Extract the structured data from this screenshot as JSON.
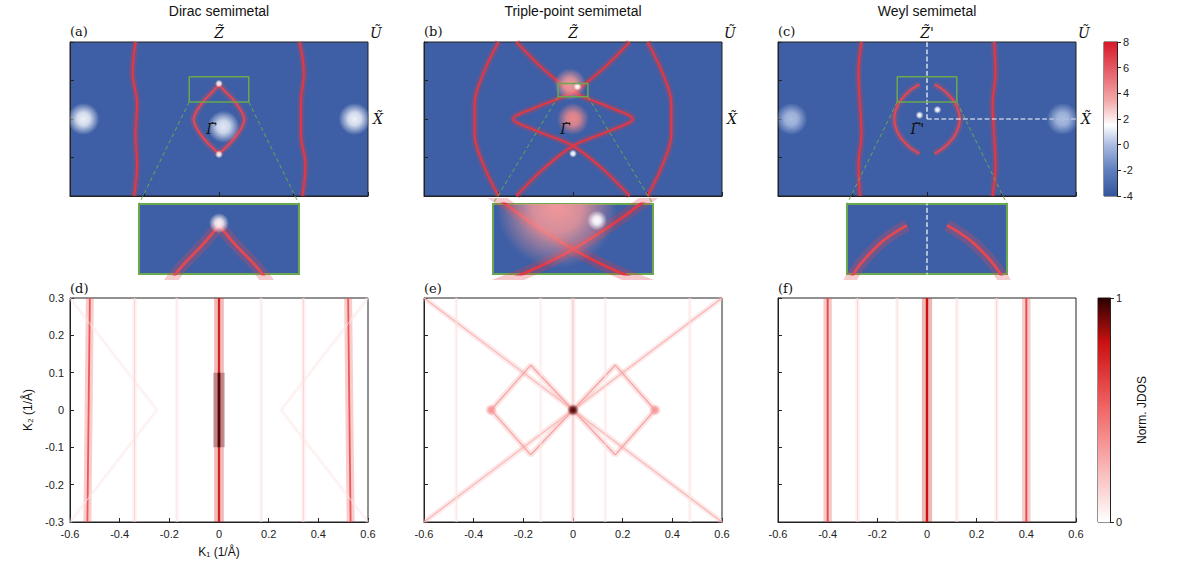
{
  "chart_data": [
    {
      "type": "colorbar",
      "ylim": [
        -4,
        8
      ],
      "yticks": [
        8,
        6,
        4,
        2,
        0,
        -2,
        -4
      ]
    },
    {
      "type": "spectral_map",
      "panel": "(a)",
      "title": "Dirac semimetal",
      "xlim": [
        -1,
        1
      ],
      "ylim": [
        -1,
        1
      ],
      "xticks": [
        -1,
        -0.5,
        0,
        0.5,
        1
      ],
      "yticks": [
        -1,
        -0.5,
        0,
        0.5,
        1
      ],
      "tick_labels": false,
      "background": -3.5,
      "labels": [
        {
          "text": "Z̃",
          "x": 0,
          "y": 1
        },
        {
          "text": "Ũ",
          "x": 1,
          "y": 1
        },
        {
          "text": "X̃",
          "x": 1,
          "y": 0
        },
        {
          "text": "Γ̃",
          "x": 0,
          "y": 0
        }
      ],
      "curves": [
        {
          "value": 7,
          "points": [
            [
              -0.57,
              -1
            ],
            [
              -0.55,
              -0.6
            ],
            [
              -0.56,
              -0.2
            ],
            [
              -0.55,
              0.2
            ],
            [
              -0.58,
              0.6
            ],
            [
              -0.56,
              1
            ]
          ]
        },
        {
          "value": 7,
          "points": [
            [
              0.56,
              -1
            ],
            [
              0.58,
              -0.6
            ],
            [
              0.55,
              -0.2
            ],
            [
              0.55,
              0.2
            ],
            [
              0.57,
              0.6
            ],
            [
              0.54,
              1
            ]
          ]
        },
        {
          "value": 6.5,
          "points": [
            [
              0,
              0.45
            ],
            [
              0.04,
              0.36
            ],
            [
              0.1,
              0.24
            ],
            [
              0.15,
              0.1
            ],
            [
              0.17,
              0
            ],
            [
              0.15,
              -0.12
            ],
            [
              0.1,
              -0.26
            ],
            [
              0.04,
              -0.38
            ],
            [
              0,
              -0.45
            ]
          ]
        },
        {
          "value": 6.5,
          "points": [
            [
              0,
              0.45
            ],
            [
              -0.04,
              0.36
            ],
            [
              -0.1,
              0.24
            ],
            [
              -0.15,
              0.1
            ],
            [
              -0.17,
              0
            ],
            [
              -0.15,
              -0.12
            ],
            [
              -0.1,
              -0.26
            ],
            [
              -0.04,
              -0.38
            ],
            [
              0,
              -0.45
            ]
          ]
        }
      ],
      "spots": [
        {
          "x": 0,
          "y": 0.46,
          "value": 1.8
        },
        {
          "x": 0,
          "y": -0.46,
          "value": 1.8
        }
      ],
      "blobs": [
        {
          "x": 0.03,
          "y": -0.1,
          "value": 1
        },
        {
          "x": -0.91,
          "y": 0,
          "value": 1.2
        },
        {
          "x": 0.91,
          "y": 0,
          "value": 1.2
        }
      ],
      "inset": {
        "xlim": [
          -0.2,
          0.2
        ],
        "ylim": [
          0.22,
          0.55
        ]
      }
    },
    {
      "type": "spectral_map",
      "panel": "(b)",
      "title": "Triple-point semimetal",
      "xlim": [
        -1,
        1
      ],
      "ylim": [
        -1,
        1
      ],
      "xticks": [
        -1,
        -0.5,
        0,
        0.5,
        1
      ],
      "yticks": [
        -1,
        -0.5,
        0,
        0.5,
        1
      ],
      "tick_labels": false,
      "background": -3.5,
      "labels": [
        {
          "text": "Z̃",
          "x": 0,
          "y": 1
        },
        {
          "text": "Ũ",
          "x": 1,
          "y": 1
        },
        {
          "text": "X̃",
          "x": 1,
          "y": 0
        },
        {
          "text": "Γ̃",
          "x": 0,
          "y": 0
        }
      ],
      "curves": [
        {
          "value": 7,
          "points": [
            [
              -0.5,
              1
            ],
            [
              -0.6,
              0.6
            ],
            [
              -0.66,
              0.2
            ],
            [
              -0.66,
              -0.2
            ],
            [
              -0.6,
              -0.6
            ],
            [
              -0.5,
              -1
            ]
          ]
        },
        {
          "value": 7,
          "points": [
            [
              0.5,
              1
            ],
            [
              0.6,
              0.6
            ],
            [
              0.66,
              0.2
            ],
            [
              0.66,
              -0.2
            ],
            [
              0.6,
              -0.6
            ],
            [
              0.5,
              -1
            ]
          ]
        },
        {
          "value": 7,
          "points": [
            [
              -0.38,
              1
            ],
            [
              -0.2,
              0.65
            ],
            [
              0,
              0.35
            ],
            [
              0.25,
              0.15
            ],
            [
              0.4,
              0
            ],
            [
              0.25,
              -0.15
            ],
            [
              0,
              -0.35
            ],
            [
              -0.2,
              -0.65
            ],
            [
              -0.38,
              -1
            ]
          ]
        },
        {
          "value": 7,
          "points": [
            [
              0.38,
              1
            ],
            [
              0.2,
              0.65
            ],
            [
              0,
              0.35
            ],
            [
              -0.25,
              0.15
            ],
            [
              -0.4,
              0
            ],
            [
              -0.25,
              -0.15
            ],
            [
              0,
              -0.35
            ],
            [
              0.2,
              -0.65
            ],
            [
              0.38,
              -1
            ]
          ]
        }
      ],
      "spots": [
        {
          "x": 0,
          "y": -0.45,
          "value": 1.5
        },
        {
          "x": 0.03,
          "y": 0.42,
          "value": 1.5
        }
      ],
      "blobs": [
        {
          "x": 0,
          "y": 0,
          "value": 4.5
        },
        {
          "x": -0.02,
          "y": 0.45,
          "value": 4
        }
      ],
      "inset": {
        "xlim": [
          -0.1,
          0.1
        ],
        "ylim": [
          0.29,
          0.46
        ]
      }
    },
    {
      "type": "spectral_map",
      "panel": "(c)",
      "title": "Weyl semimetal",
      "xlim": [
        -1,
        1
      ],
      "ylim": [
        -1,
        1
      ],
      "xticks": [
        -1,
        -0.5,
        0,
        0.5,
        1
      ],
      "yticks": [
        -1,
        -0.5,
        0,
        0.5,
        1
      ],
      "tick_labels": false,
      "background": -3.5,
      "labels": [
        {
          "text": "Z̃'",
          "x": 0,
          "y": 1
        },
        {
          "text": "Ũ",
          "x": 1,
          "y": 1
        },
        {
          "text": "X̃",
          "x": 1,
          "y": 0
        },
        {
          "text": "Γ̃'",
          "x": 0,
          "y": 0
        }
      ],
      "curves": [
        {
          "value": 7,
          "points": [
            [
              -0.45,
              -1
            ],
            [
              -0.46,
              -0.6
            ],
            [
              -0.44,
              -0.2
            ],
            [
              -0.45,
              0.2
            ],
            [
              -0.46,
              0.6
            ],
            [
              -0.44,
              1
            ]
          ]
        },
        {
          "value": 7,
          "points": [
            [
              0.44,
              -1
            ],
            [
              0.46,
              -0.6
            ],
            [
              0.45,
              -0.2
            ],
            [
              0.44,
              0.2
            ],
            [
              0.46,
              0.6
            ],
            [
              0.45,
              1
            ]
          ]
        },
        {
          "value": 6.5,
          "points": [
            [
              0.05,
              0.45
            ],
            [
              0.12,
              0.36
            ],
            [
              0.19,
              0.2
            ],
            [
              0.22,
              0
            ],
            [
              0.19,
              -0.2
            ],
            [
              0.12,
              -0.36
            ],
            [
              0.05,
              -0.45
            ]
          ]
        },
        {
          "value": 6.5,
          "points": [
            [
              -0.05,
              0.45
            ],
            [
              -0.12,
              0.36
            ],
            [
              -0.19,
              0.2
            ],
            [
              -0.22,
              0
            ],
            [
              -0.19,
              -0.2
            ],
            [
              -0.12,
              -0.36
            ],
            [
              -0.05,
              -0.45
            ]
          ]
        }
      ],
      "dashed_lines": [
        [
          [
            0,
            0
          ],
          [
            0,
            1
          ]
        ],
        [
          [
            0,
            0
          ],
          [
            1,
            0
          ]
        ]
      ],
      "spots": [
        {
          "x": -0.05,
          "y": 0.05,
          "value": 1.5
        },
        {
          "x": 0.07,
          "y": 0.12,
          "value": 1.5
        }
      ],
      "blobs": [
        {
          "x": -0.91,
          "y": 0,
          "value": 0
        },
        {
          "x": 0.91,
          "y": 0,
          "value": 0
        }
      ],
      "inset": {
        "xlim": [
          -0.2,
          0.2
        ],
        "ylim": [
          0.22,
          0.55
        ]
      }
    },
    {
      "type": "colorbar",
      "title": "Norm. JDOS",
      "ylim": [
        0,
        1
      ],
      "yticks": [
        0,
        1
      ]
    },
    {
      "type": "jdos_map",
      "panel": "(d)",
      "xlabel": "K₁ (1/Å)",
      "ylabel": "K₂ (1/Å)",
      "xlim": [
        -0.6,
        0.6
      ],
      "ylim": [
        -0.3,
        0.3
      ],
      "xticks": [
        -0.6,
        -0.4,
        -0.2,
        0,
        0.2,
        0.4,
        0.6
      ],
      "yticks": [
        -0.3,
        -0.2,
        -0.1,
        0,
        0.1,
        0.2,
        0.3
      ],
      "tick_labels": true,
      "curves": [
        {
          "value": 0.75,
          "points": [
            [
              0,
              -0.3
            ],
            [
              0,
              0.3
            ]
          ]
        },
        {
          "value": 0.95,
          "points": [
            [
              0,
              -0.1
            ],
            [
              0,
              0.1
            ]
          ]
        },
        {
          "value": 0.55,
          "points": [
            [
              -0.53,
              -0.3
            ],
            [
              -0.52,
              0.3
            ]
          ]
        },
        {
          "value": 0.55,
          "points": [
            [
              0.53,
              -0.3
            ],
            [
              0.52,
              0.3
            ]
          ]
        },
        {
          "value": 0.15,
          "points": [
            [
              -0.34,
              -0.3
            ],
            [
              -0.34,
              0.3
            ]
          ]
        },
        {
          "value": 0.15,
          "points": [
            [
              0.34,
              -0.3
            ],
            [
              0.34,
              0.3
            ]
          ]
        },
        {
          "value": 0.1,
          "points": [
            [
              -0.17,
              -0.3
            ],
            [
              -0.17,
              0.3
            ]
          ]
        },
        {
          "value": 0.1,
          "points": [
            [
              0.17,
              -0.3
            ],
            [
              0.17,
              0.3
            ]
          ]
        },
        {
          "value": 0.08,
          "points": [
            [
              -0.6,
              0.3
            ],
            [
              -0.25,
              0
            ],
            [
              -0.6,
              -0.3
            ]
          ]
        },
        {
          "value": 0.08,
          "points": [
            [
              0.6,
              0.3
            ],
            [
              0.25,
              0
            ],
            [
              0.6,
              -0.3
            ]
          ]
        }
      ],
      "spots": []
    },
    {
      "type": "jdos_map",
      "panel": "(e)",
      "xlim": [
        -0.6,
        0.6
      ],
      "ylim": [
        -0.3,
        0.3
      ],
      "xticks": [
        -0.6,
        -0.4,
        -0.2,
        0,
        0.2,
        0.4,
        0.6
      ],
      "yticks": [
        -0.3,
        -0.2,
        -0.1,
        0,
        0.1,
        0.2,
        0.3
      ],
      "tick_labels": "x",
      "curves": [
        {
          "value": 0.25,
          "points": [
            [
              -0.6,
              -0.3
            ],
            [
              0.6,
              0.3
            ]
          ]
        },
        {
          "value": 0.25,
          "points": [
            [
              -0.6,
              0.3
            ],
            [
              0.6,
              -0.3
            ]
          ]
        },
        {
          "value": 0.3,
          "points": [
            [
              -0.33,
              0
            ],
            [
              -0.17,
              0.12
            ],
            [
              0,
              0
            ],
            [
              -0.17,
              -0.12
            ],
            [
              -0.33,
              0
            ]
          ]
        },
        {
          "value": 0.3,
          "points": [
            [
              0.33,
              0
            ],
            [
              0.17,
              0.12
            ],
            [
              0,
              0
            ],
            [
              0.17,
              -0.12
            ],
            [
              0.33,
              0
            ]
          ]
        },
        {
          "value": 0.2,
          "points": [
            [
              0,
              -0.3
            ],
            [
              0,
              0.3
            ]
          ]
        },
        {
          "value": 0.1,
          "points": [
            [
              -0.47,
              -0.3
            ],
            [
              -0.47,
              0.3
            ]
          ]
        },
        {
          "value": 0.1,
          "points": [
            [
              0.47,
              -0.3
            ],
            [
              0.47,
              0.3
            ]
          ]
        },
        {
          "value": 0.08,
          "points": [
            [
              -0.13,
              -0.3
            ],
            [
              -0.13,
              0.3
            ]
          ]
        },
        {
          "value": 0.08,
          "points": [
            [
              0.13,
              -0.3
            ],
            [
              0.13,
              0.3
            ]
          ]
        }
      ],
      "spots": [
        {
          "x": 0,
          "y": 0,
          "value": 0.95
        },
        {
          "x": -0.33,
          "y": 0,
          "value": 0.35
        },
        {
          "x": 0.33,
          "y": 0,
          "value": 0.35
        }
      ]
    },
    {
      "type": "jdos_map",
      "panel": "(f)",
      "xlim": [
        -0.6,
        0.6
      ],
      "ylim": [
        -0.3,
        0.3
      ],
      "xticks": [
        -0.6,
        -0.4,
        -0.2,
        0,
        0.2,
        0.4,
        0.6
      ],
      "yticks": [
        -0.3,
        -0.2,
        -0.1,
        0,
        0.1,
        0.2,
        0.3
      ],
      "tick_labels": "x",
      "curves": [
        {
          "value": 0.8,
          "points": [
            [
              0,
              -0.3
            ],
            [
              0,
              0.3
            ]
          ]
        },
        {
          "value": 0.6,
          "points": [
            [
              -0.4,
              -0.3
            ],
            [
              -0.4,
              0.3
            ]
          ]
        },
        {
          "value": 0.6,
          "points": [
            [
              0.4,
              -0.3
            ],
            [
              0.4,
              0.3
            ]
          ]
        },
        {
          "value": 0.15,
          "points": [
            [
              -0.28,
              -0.3
            ],
            [
              -0.28,
              0.3
            ]
          ]
        },
        {
          "value": 0.15,
          "points": [
            [
              0.28,
              -0.3
            ],
            [
              0.28,
              0.3
            ]
          ]
        },
        {
          "value": 0.12,
          "points": [
            [
              -0.12,
              -0.3
            ],
            [
              -0.12,
              0.3
            ]
          ]
        },
        {
          "value": 0.12,
          "points": [
            [
              0.12,
              -0.3
            ],
            [
              0.12,
              0.3
            ]
          ]
        }
      ],
      "spots": []
    }
  ]
}
